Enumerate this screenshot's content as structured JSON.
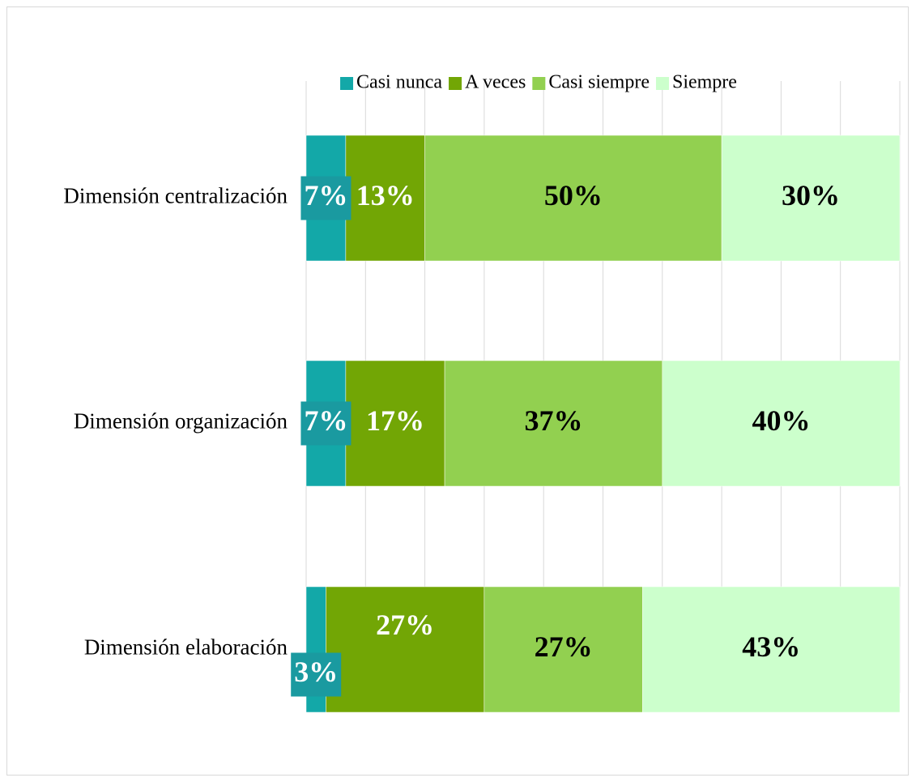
{
  "chart_data": {
    "type": "stacked-bar-horizontal",
    "categories": [
      "Dimensión centralización",
      "Dimensión organización",
      "Dimensión elaboración"
    ],
    "series": [
      {
        "name": "Casi nunca",
        "color": "#13a8a8",
        "values": [
          6.67,
          6.67,
          3.33
        ],
        "value_labels": [
          "7%",
          "7%",
          "3%"
        ]
      },
      {
        "name": "A veces",
        "color": "#72a605",
        "values": [
          13.33,
          16.67,
          26.67
        ],
        "value_labels": [
          "13%",
          "17%",
          "27%"
        ]
      },
      {
        "name": "Casi siempre",
        "color": "#92d050",
        "values": [
          50,
          36.67,
          26.67
        ],
        "value_labels": [
          "50%",
          "37%",
          "27%"
        ]
      },
      {
        "name": "Siempre",
        "color": "#ccffcc",
        "values": [
          30,
          40,
          43.33
        ],
        "value_labels": [
          "30%",
          "40%",
          "43%"
        ]
      }
    ],
    "xlim": [
      0,
      100
    ],
    "xticks": [
      0,
      10,
      20,
      30,
      40,
      50,
      60,
      70,
      80,
      90,
      100
    ],
    "grid": true,
    "legend": "top"
  }
}
